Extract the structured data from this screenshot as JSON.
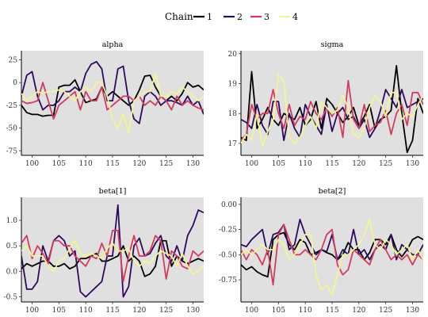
{
  "legend": {
    "title": "Chain",
    "entries": [
      {
        "label": "1",
        "color": "#000000"
      },
      {
        "label": "2",
        "color": "#2e0a5e"
      },
      {
        "label": "3",
        "color": "#d33b5f"
      },
      {
        "label": "4",
        "color": "#f3f592"
      }
    ]
  },
  "chart_data": [
    {
      "type": "line",
      "title": "alpha",
      "xlim": [
        98,
        132
      ],
      "ylim": [
        -80,
        35
      ],
      "xticks": [
        100,
        105,
        110,
        115,
        120,
        125,
        130
      ],
      "yticks": [
        25,
        0,
        -25,
        -50,
        -75
      ],
      "x": [
        98,
        99,
        100,
        101,
        102,
        103,
        104,
        105,
        106,
        107,
        108,
        109,
        110,
        111,
        112,
        113,
        114,
        115,
        116,
        117,
        118,
        119,
        120,
        121,
        122,
        123,
        124,
        125,
        126,
        127,
        128,
        129,
        130,
        131,
        132
      ],
      "series": [
        {
          "name": "1",
          "values": [
            -25,
            -33,
            -35,
            -35,
            -37,
            -36,
            -36,
            -5,
            -3,
            -3,
            3,
            -10,
            -22,
            -20,
            -18,
            -5,
            -15,
            -10,
            -15,
            -20,
            -25,
            -20,
            -8,
            7,
            8,
            -5,
            -15,
            -20,
            -15,
            -20,
            -12,
            0,
            -5,
            -3,
            -8
          ]
        },
        {
          "name": "2",
          "values": [
            -15,
            8,
            12,
            -15,
            -30,
            -25,
            -25,
            -20,
            -10,
            -10,
            -5,
            -10,
            10,
            20,
            23,
            15,
            -20,
            -20,
            15,
            18,
            -20,
            -40,
            -45,
            -15,
            -10,
            -15,
            -25,
            -20,
            -20,
            -22,
            -25,
            -15,
            -25,
            -20,
            -35
          ]
        },
        {
          "name": "3",
          "values": [
            -20,
            -23,
            -22,
            -20,
            0,
            -20,
            -40,
            -25,
            -20,
            -15,
            -10,
            -30,
            -10,
            -20,
            -20,
            -5,
            -30,
            -25,
            -20,
            -15,
            -15,
            -20,
            -15,
            -25,
            -20,
            -25,
            -15,
            -20,
            -30,
            -15,
            -25,
            -20,
            -25,
            -28,
            -30
          ]
        },
        {
          "name": "4",
          "values": [
            -12,
            -20,
            -15,
            -10,
            -12,
            -10,
            -10,
            -8,
            -10,
            -15,
            -20,
            -10,
            -5,
            -10,
            0,
            0,
            -15,
            -40,
            -50,
            -35,
            -55,
            -20,
            -15,
            -10,
            -10,
            10,
            -15,
            -15,
            -10,
            -12,
            -5,
            -10,
            -15,
            -20,
            -15
          ]
        }
      ]
    },
    {
      "type": "line",
      "title": "sigma",
      "xlim": [
        98,
        132
      ],
      "ylim": [
        16.6,
        20.1
      ],
      "xticks": [
        100,
        105,
        110,
        115,
        120,
        125,
        130
      ],
      "yticks": [
        20,
        19,
        18,
        17
      ],
      "x": [
        98,
        99,
        100,
        101,
        102,
        103,
        104,
        105,
        106,
        107,
        108,
        109,
        110,
        111,
        112,
        113,
        114,
        115,
        116,
        117,
        118,
        119,
        120,
        121,
        122,
        123,
        124,
        125,
        126,
        127,
        128,
        129,
        130,
        131,
        132
      ],
      "series": [
        {
          "name": "1",
          "values": [
            17.2,
            17.1,
            19.4,
            17.5,
            17.8,
            18.2,
            17.8,
            17.6,
            18.0,
            17.9,
            17.8,
            18.2,
            17.6,
            17.8,
            18.4,
            17.5,
            18.5,
            18.3,
            18.0,
            17.7,
            17.9,
            18.2,
            17.6,
            17.9,
            18.3,
            17.5,
            17.8,
            17.9,
            18.1,
            19.6,
            18.0,
            16.7,
            17.1,
            18.5,
            18.0
          ]
        },
        {
          "name": "2",
          "values": [
            17.8,
            17.7,
            17.5,
            18.3,
            17.6,
            17.3,
            18.4,
            18.4,
            17.1,
            18.0,
            17.5,
            17.2,
            18.3,
            17.9,
            17.6,
            17.3,
            18.3,
            17.4,
            18.0,
            18.2,
            17.8,
            17.9,
            17.5,
            17.8,
            17.2,
            17.5,
            18.1,
            18.8,
            18.5,
            18.2,
            18.8,
            18.2,
            18.3,
            18.4,
            18.5
          ]
        },
        {
          "name": "3",
          "values": [
            17.1,
            17.3,
            18.3,
            17.8,
            18.0,
            18.0,
            18.8,
            18.0,
            17.5,
            18.3,
            17.6,
            17.9,
            17.8,
            18.4,
            18.0,
            17.8,
            18.2,
            17.9,
            18.2,
            17.2,
            19.1,
            17.8,
            17.5,
            18.3,
            17.4,
            17.6,
            17.7,
            18.1,
            17.3,
            18.0,
            18.3,
            17.6,
            18.7,
            18.7,
            18.3
          ]
        },
        {
          "name": "4",
          "values": [
            17.0,
            17.3,
            17.1,
            18.0,
            16.9,
            17.4,
            17.8,
            19.3,
            19.1,
            17.2,
            17.0,
            17.2,
            17.6,
            17.9,
            17.5,
            18.4,
            18.2,
            18.0,
            18.1,
            18.6,
            18.2,
            17.3,
            17.2,
            17.5,
            18.2,
            18.6,
            18.4,
            17.9,
            18.7,
            18.7,
            17.8,
            18.0,
            17.9,
            18.3,
            18.6
          ]
        }
      ]
    },
    {
      "type": "line",
      "title": "beta[1]",
      "xlim": [
        98,
        132
      ],
      "ylim": [
        -0.6,
        1.45
      ],
      "xticks": [
        100,
        105,
        110,
        115,
        120,
        125,
        130
      ],
      "yticks": [
        1.0,
        0.5,
        0.0,
        -0.5
      ],
      "x": [
        98,
        99,
        100,
        101,
        102,
        103,
        104,
        105,
        106,
        107,
        108,
        109,
        110,
        111,
        112,
        113,
        114,
        115,
        116,
        117,
        118,
        119,
        120,
        121,
        122,
        123,
        124,
        125,
        126,
        127,
        128,
        129,
        130,
        131,
        132
      ],
      "series": [
        {
          "name": "1",
          "values": [
            0.05,
            0.15,
            0.1,
            0.15,
            0.2,
            0.2,
            0.1,
            0.1,
            0.15,
            0.05,
            0.1,
            0.25,
            0.25,
            0.3,
            0.35,
            0.2,
            0.2,
            0.25,
            0.3,
            0.5,
            0.2,
            0.3,
            0.2,
            -0.1,
            -0.05,
            0.1,
            0.6,
            0.6,
            0.1,
            0.3,
            0.2,
            0.15,
            0.2,
            0.25,
            0.2
          ]
        },
        {
          "name": "2",
          "values": [
            0.3,
            -0.35,
            -0.35,
            -0.2,
            0.5,
            0.2,
            0.6,
            0.7,
            0.6,
            0.3,
            0.4,
            -0.4,
            -0.5,
            -0.4,
            -0.3,
            -0.2,
            0.3,
            0.3,
            1.3,
            -0.5,
            -0.3,
            0.5,
            0.65,
            0.3,
            0.35,
            0.55,
            0.7,
            0.3,
            0.2,
            0.5,
            0.2,
            0.7,
            0.9,
            1.2,
            1.15
          ]
        },
        {
          "name": "3",
          "values": [
            0.55,
            0.7,
            0.25,
            0.5,
            0.35,
            0.15,
            0.6,
            0.6,
            0.5,
            0.5,
            0.3,
            0.2,
            0.1,
            0.3,
            0.25,
            0.55,
            0.3,
            0.8,
            0.8,
            -0.2,
            0.3,
            0.7,
            0.3,
            0.3,
            0.4,
            0.7,
            0.6,
            -0.15,
            0.4,
            0.3,
            0.1,
            0.05,
            0.4,
            0.3,
            0.4
          ]
        },
        {
          "name": "4",
          "values": [
            0.4,
            0.5,
            0.3,
            0.3,
            0.3,
            0.1,
            0.0,
            0.2,
            0.25,
            0.45,
            0.6,
            0.35,
            0.3,
            0.35,
            0.3,
            0.25,
            0.45,
            0.55,
            0.4,
            0.4,
            0.45,
            0.2,
            0.1,
            0.2,
            0.15,
            0.3,
            0.4,
            0.35,
            0.3,
            0.1,
            0.35,
            0.1,
            -0.05,
            0.0,
            0.1
          ]
        }
      ]
    },
    {
      "type": "line",
      "title": "beta[2]",
      "xlim": [
        98,
        132
      ],
      "ylim": [
        -0.97,
        0.07
      ],
      "xticks": [
        100,
        105,
        110,
        115,
        120,
        125,
        130
      ],
      "yticks": [
        0.0,
        -0.25,
        -0.5,
        -0.75
      ],
      "x": [
        98,
        99,
        100,
        101,
        102,
        103,
        104,
        105,
        106,
        107,
        108,
        109,
        110,
        111,
        112,
        113,
        114,
        115,
        116,
        117,
        118,
        119,
        120,
        121,
        122,
        123,
        124,
        125,
        126,
        127,
        128,
        129,
        130,
        131,
        132
      ],
      "series": [
        {
          "name": "1",
          "values": [
            -0.6,
            -0.65,
            -0.62,
            -0.67,
            -0.7,
            -0.72,
            -0.35,
            -0.3,
            -0.28,
            -0.4,
            -0.45,
            -0.35,
            -0.38,
            -0.5,
            -0.48,
            -0.45,
            -0.48,
            -0.5,
            -0.55,
            -0.5,
            -0.38,
            -0.45,
            -0.45,
            -0.55,
            -0.48,
            -0.35,
            -0.35,
            -0.4,
            -0.3,
            -0.45,
            -0.52,
            -0.45,
            -0.35,
            -0.32,
            -0.35
          ]
        },
        {
          "name": "2",
          "values": [
            -0.4,
            -0.42,
            -0.35,
            -0.3,
            -0.25,
            -0.5,
            -0.3,
            -0.28,
            -0.2,
            -0.45,
            -0.4,
            -0.15,
            -0.3,
            -0.4,
            -0.5,
            -0.45,
            -0.47,
            -0.3,
            -0.55,
            -0.45,
            -0.5,
            -0.25,
            -0.5,
            -0.45,
            -0.55,
            -0.45,
            -0.4,
            -0.45,
            -0.3,
            -0.55,
            -0.4,
            -0.45,
            -0.5,
            -0.5,
            -0.4
          ]
        },
        {
          "name": "3",
          "values": [
            -0.45,
            -0.55,
            -0.45,
            -0.5,
            -0.6,
            -0.45,
            -0.8,
            -0.3,
            -0.2,
            -0.35,
            -0.5,
            -0.5,
            -0.45,
            -0.5,
            -0.55,
            -0.45,
            -0.3,
            -0.25,
            -0.6,
            -0.7,
            -0.65,
            -0.45,
            -0.5,
            -0.55,
            -0.6,
            -0.45,
            -0.35,
            -0.45,
            -0.55,
            -0.5,
            -0.55,
            -0.5,
            -0.6,
            -0.5,
            -0.55
          ]
        },
        {
          "name": "4",
          "values": [
            -0.5,
            -0.45,
            -0.5,
            -0.45,
            -0.4,
            -0.45,
            -0.45,
            -0.35,
            -0.4,
            -0.55,
            -0.5,
            -0.4,
            -0.3,
            -0.3,
            -0.7,
            -0.85,
            -0.8,
            -0.9,
            -0.7,
            -0.5,
            -0.5,
            -0.45,
            -0.4,
            -0.3,
            -0.15,
            -0.4,
            -0.45,
            -0.35,
            -0.4,
            -0.5,
            -0.45,
            -0.4,
            -0.55,
            -0.45,
            -0.55
          ]
        }
      ]
    }
  ]
}
